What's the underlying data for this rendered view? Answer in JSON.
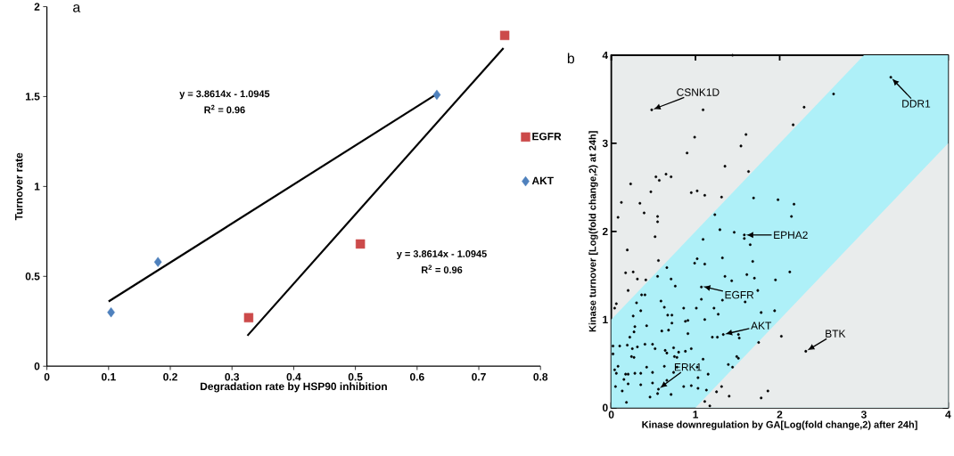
{
  "chart_data": [
    {
      "type": "scatter",
      "title": "a",
      "xlabel": "Degradation rate by HSP90 inhibition",
      "ylabel": "Turnover rate",
      "xlim": [
        0,
        0.8
      ],
      "ylim": [
        0,
        2
      ],
      "xticks": [
        0,
        0.1,
        0.2,
        0.3,
        0.4,
        0.5,
        0.6,
        0.7,
        0.8
      ],
      "yticks": [
        0,
        0.5,
        1,
        1.5,
        2
      ],
      "grid": false,
      "legend": "right",
      "series": [
        {
          "name": "EGFR",
          "marker": "square",
          "color": "#cc4a4a",
          "x": [
            0.327,
            0.508,
            0.742
          ],
          "values": [
            0.27,
            0.68,
            1.84
          ]
        },
        {
          "name": "AKT",
          "marker": "diamond",
          "color": "#4f81bd",
          "x": [
            0.104,
            0.18,
            0.632
          ],
          "values": [
            0.3,
            0.58,
            1.51
          ]
        },
        {
          "type": "line",
          "color": "#000000",
          "x": [
            0.1,
            0.63
          ],
          "values": [
            0.36,
            1.51
          ]
        },
        {
          "type": "line",
          "color": "#000000",
          "x": [
            0.325,
            0.74
          ],
          "values": [
            0.17,
            1.77
          ]
        }
      ],
      "annotations": [
        "y = 3.8614x - 1.0945",
        "R$^{2}$ = 0.96",
        "y = 3.8614x - 1.0945",
        "R$^{2}$ = 0.96"
      ]
    },
    {
      "type": "scatter",
      "title": "b",
      "xlabel": "Kinase downregulation by GA[Log(fold change,2) after 24h]",
      "ylabel": "Kinase turnover [Log(fold change,2) at 24h]",
      "xlim": [
        0,
        4
      ],
      "ylim": [
        0,
        4
      ],
      "xticks": [
        0,
        1,
        2,
        3,
        4
      ],
      "yticks": [
        0,
        1,
        2,
        3,
        4
      ],
      "grid": false,
      "legend": false,
      "series": [
        {
          "type": "area",
          "color": "#aef0f8",
          "x": [
            0,
            1,
            3,
            4
          ],
          "values": [
            1,
            2,
            4,
            4
          ]
        },
        {
          "type": "area",
          "color": "#e9ecec",
          "x": [
            0,
            1,
            3,
            4
          ],
          "values": [
            0,
            0,
            2,
            3
          ]
        },
        {
          "marker": "circle",
          "color": "#000000",
          "x": [
            1.58,
            1.44,
            0.48,
            1.09,
            2.64,
            2.29,
            2.16,
            3.32,
            0.99,
            1.6,
            1.54,
            0.9,
            1.35,
            1.63,
            0.23,
            0.53,
            0.57,
            0.65,
            0.71,
            0.47,
            0.95,
            1.02,
            1.11,
            1.31,
            0.12,
            0.34,
            1.69,
            1.98,
            2.17,
            0.39,
            0.08,
            0.55,
            0.55,
            1.23,
            2.14,
            1.29,
            1.46,
            1.58,
            0.52,
            1.09,
            1.65,
            0.19,
            1.02,
            1.32,
            1.68,
            0.56,
            0.99,
            1.11,
            0.66,
            0.17,
            0.26,
            1.61,
            2.12,
            0.31,
            0.41,
            0.55,
            0.71,
            1.35,
            1.43,
            1.7,
            1.95,
            0.2,
            0.76,
            1.07,
            1.74,
            0.36,
            0.4,
            0.06,
            0.04,
            0.3,
            0.59,
            1.07,
            1.32,
            1.59,
            0.63,
            0.86,
            1.01,
            1.22,
            0.35,
            1.94,
            1.78,
            0.67,
            0.72,
            1.27,
            0.26,
            0.88,
            0.91,
            1.11,
            0.72,
            0.28,
            0.42,
            0.6,
            0.68,
            0.27,
            0.91,
            1.2,
            1.26,
            1.33,
            1.51,
            1.52,
            2.02,
            1.75,
            0.22,
            0.02,
            0.1,
            0.19,
            0.25,
            0.31,
            0.4,
            0.49,
            0.52,
            0.64,
            0.66,
            0.74,
            0.8,
            0.88,
            0.95,
            2.31,
            0.02,
            0.24,
            0.27,
            0.75,
            0.78,
            1.49,
            1.51,
            1.09,
            0.08,
            0.04,
            0.06,
            0.17,
            0.2,
            0.28,
            0.35,
            0.42,
            0.49,
            0.63,
            0.78,
            0.74,
            1.02,
            1.15,
            1.39,
            1.44,
            0.15,
            0.05,
            0.13,
            0.2,
            0.35,
            0.49,
            0.56,
            0.55,
            0.66,
            0.86,
            0.95,
            1.03,
            1.03,
            1.13,
            1.31,
            1.25,
            0.18,
            0.46,
            0.71,
            1.4,
            1.78,
            1.86,
            1.17,
            1.11
          ],
          "values": [
            1.92,
            4.0,
            3.38,
            3.38,
            3.56,
            3.41,
            3.21,
            3.75,
            3.07,
            3.1,
            2.97,
            2.89,
            2.74,
            2.68,
            2.54,
            2.62,
            2.58,
            2.65,
            2.62,
            2.45,
            2.44,
            2.46,
            2.41,
            2.39,
            2.33,
            2.32,
            2.38,
            2.36,
            2.31,
            2.21,
            2.16,
            2.17,
            2.11,
            2.19,
            2.17,
            2.02,
            1.99,
            1.96,
            1.94,
            1.91,
            1.85,
            1.79,
            1.69,
            1.7,
            1.66,
            1.67,
            1.64,
            1.63,
            1.59,
            1.53,
            1.54,
            1.51,
            1.54,
            1.46,
            1.45,
            1.49,
            1.46,
            1.49,
            1.44,
            1.47,
            1.45,
            1.33,
            1.38,
            1.37,
            1.33,
            1.28,
            1.28,
            1.18,
            1.13,
            1.19,
            1.21,
            1.23,
            1.22,
            1.2,
            1.14,
            1.13,
            1.13,
            1.13,
            1.1,
            1.1,
            1.08,
            1.05,
            1.05,
            1.06,
            1.04,
            0.98,
            0.99,
            1.0,
            0.96,
            0.92,
            0.93,
            0.87,
            0.88,
            0.86,
            0.84,
            0.8,
            0.8,
            0.83,
            0.83,
            0.79,
            0.81,
            0.74,
            0.8,
            0.7,
            0.7,
            0.71,
            0.67,
            0.69,
            0.72,
            0.72,
            0.67,
            0.65,
            0.62,
            0.68,
            0.63,
            0.64,
            0.67,
            0.64,
            0.61,
            0.58,
            0.57,
            0.58,
            0.57,
            0.58,
            0.56,
            0.55,
            0.47,
            0.43,
            0.39,
            0.38,
            0.38,
            0.39,
            0.39,
            0.46,
            0.4,
            0.47,
            0.46,
            0.4,
            0.46,
            0.38,
            0.49,
            0.46,
            0.32,
            0.24,
            0.19,
            0.27,
            0.26,
            0.28,
            0.21,
            0.16,
            0.31,
            0.24,
            0.25,
            0.22,
            0.34,
            0.2,
            0.24,
            0.18,
            0.06,
            0.12,
            0.15,
            0.13,
            0.11,
            0.19,
            0.02,
            0.07
          ]
        }
      ],
      "annotations": [
        {
          "text": "CSNK1D",
          "x": 0.48,
          "y": 3.38
        },
        {
          "text": "DDR1",
          "x": 3.32,
          "y": 3.75
        },
        {
          "text": "EPHA2",
          "x": 1.58,
          "y": 1.96
        },
        {
          "text": "EGFR",
          "x": 1.07,
          "y": 1.38
        },
        {
          "text": "AKT",
          "x": 1.33,
          "y": 0.83
        },
        {
          "text": "ERK1",
          "x": 0.56,
          "y": 0.21
        },
        {
          "text": "BTK",
          "x": 2.31,
          "y": 0.64
        }
      ]
    }
  ]
}
